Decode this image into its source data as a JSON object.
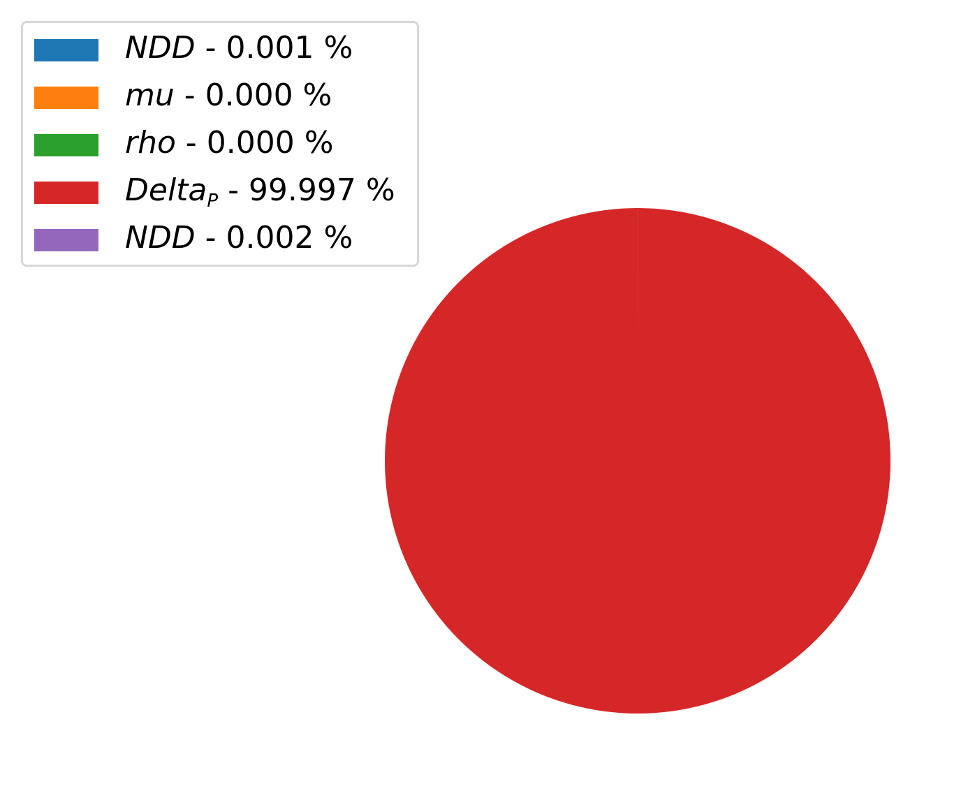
{
  "chart_data": {
    "type": "pie",
    "title": "",
    "legend_position": "top-left",
    "slices": [
      {
        "name": "NDD",
        "sub": "",
        "value": 0.001,
        "label": " - 0.001 %",
        "color": "#1f77b4"
      },
      {
        "name": "mu",
        "sub": "",
        "value": 0.0,
        "label": " - 0.000 %",
        "color": "#ff7f0e"
      },
      {
        "name": "rho",
        "sub": "",
        "value": 0.0,
        "label": " - 0.000 %",
        "color": "#2ca02c"
      },
      {
        "name": "Delta",
        "sub": "P",
        "value": 99.997,
        "label": " - 99.997 %",
        "color": "#d62728"
      },
      {
        "name": "NDD",
        "sub": "",
        "value": 0.002,
        "label": " - 0.002 %",
        "color": "#9467bd"
      }
    ]
  }
}
